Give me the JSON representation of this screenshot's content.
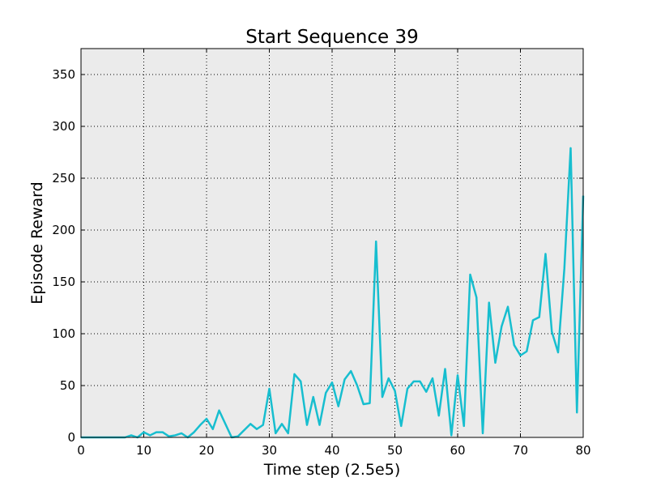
{
  "chart_data": {
    "type": "line",
    "title": "Start Sequence 39",
    "xlabel": "Time step (2.5e5)",
    "ylabel": "Episode Reward",
    "xlim": [
      0,
      80
    ],
    "ylim": [
      0,
      375
    ],
    "xticks": [
      0,
      10,
      20,
      30,
      40,
      50,
      60,
      70,
      80
    ],
    "yticks": [
      0,
      50,
      100,
      150,
      200,
      250,
      300,
      350
    ],
    "grid": true,
    "background": "#ebebeb",
    "series": [
      {
        "color": "#17becf",
        "x": [
          0,
          1,
          2,
          3,
          4,
          5,
          6,
          7,
          8,
          9,
          10,
          11,
          12,
          13,
          14,
          15,
          16,
          17,
          18,
          19,
          20,
          21,
          22,
          23,
          24,
          25,
          26,
          27,
          28,
          29,
          30,
          31,
          32,
          33,
          34,
          35,
          36,
          37,
          38,
          39,
          40,
          41,
          42,
          43,
          44,
          45,
          46,
          47,
          48,
          49,
          50,
          51,
          52,
          53,
          54,
          55,
          56,
          57,
          58,
          59,
          60,
          61,
          62,
          63,
          64,
          65,
          66,
          67,
          68,
          69,
          70,
          71,
          72,
          73,
          74,
          75,
          76,
          77,
          78,
          79,
          80
        ],
        "y": [
          0,
          0,
          0,
          0,
          0,
          0,
          0,
          0,
          2,
          0,
          5,
          2,
          5,
          5,
          1,
          2,
          4,
          0,
          5,
          12,
          18,
          8,
          26,
          13,
          0,
          1,
          7,
          13,
          8,
          12,
          47,
          4,
          13,
          4,
          61,
          54,
          12,
          39,
          12,
          43,
          53,
          30,
          56,
          64,
          50,
          32,
          33,
          189,
          39,
          57,
          45,
          11,
          47,
          54,
          54,
          44,
          57,
          21,
          66,
          2,
          60,
          11,
          157,
          135,
          4,
          130,
          72,
          107,
          126,
          89,
          79,
          83,
          113,
          116,
          177,
          102,
          82,
          163,
          279,
          24,
          233
        ]
      }
    ]
  }
}
